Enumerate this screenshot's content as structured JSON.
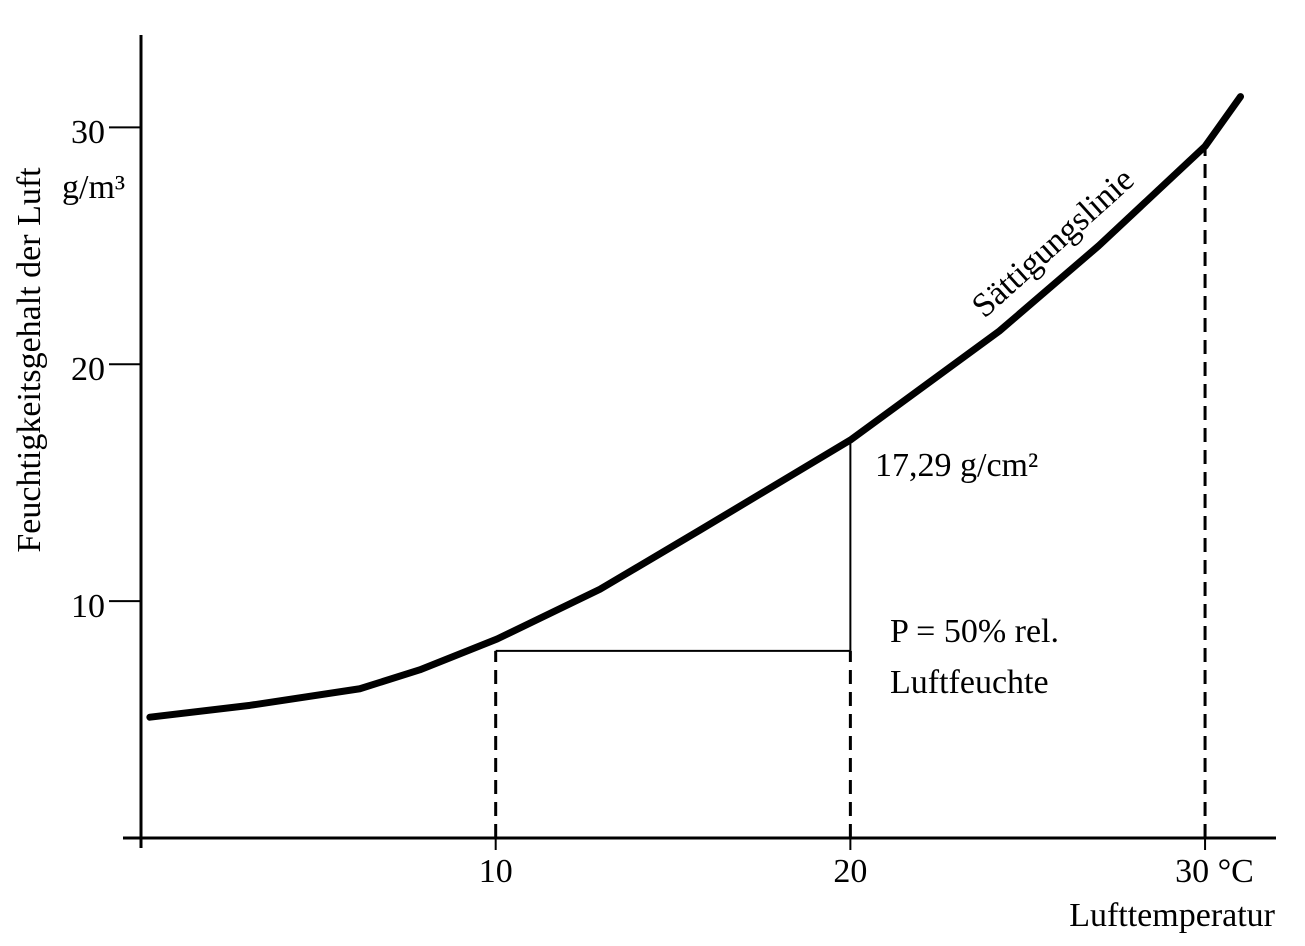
{
  "chart_data": {
    "type": "line",
    "xlabel": "Lufttemperatur",
    "ylabel": "Feuchtigkeitsgehalt der Luft",
    "y_unit": "g/m³",
    "x": [
      0.25,
      3.07,
      6.17,
      7.86,
      10.04,
      12.94,
      15.76,
      20.0,
      24.2,
      27.0,
      30.0,
      31.0
    ],
    "series": [
      {
        "name": "Sättigungslinie",
        "color": "#000000",
        "values": [
          5.1,
          5.6,
          6.3,
          7.1,
          8.4,
          10.5,
          13.0,
          16.8,
          21.4,
          25.0,
          29.2,
          31.3
        ]
      }
    ],
    "xlim": [
      0,
      32
    ],
    "ylim": [
      0,
      33.9
    ],
    "xticks": [
      10,
      20,
      {
        "value": 30,
        "label": "30 °C"
      }
    ],
    "yticks": [
      10,
      20,
      30
    ],
    "reference_x": [
      10,
      20,
      30
    ],
    "reference_y": [
      8.4,
      16.8,
      29.2
    ],
    "level": 7.9,
    "annotations": [
      "17,29 g/cm²",
      "P = 50% rel.",
      "Luftfeuchte"
    ]
  }
}
